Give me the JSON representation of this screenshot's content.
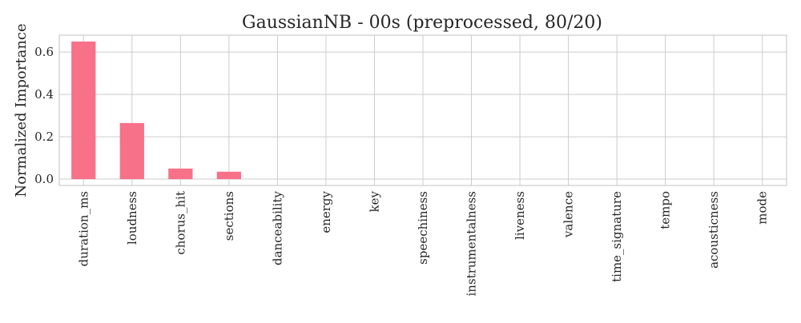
{
  "chart_data": {
    "type": "bar",
    "title": "GaussianNB - 00s (preprocessed, 80/20)",
    "xlabel": "",
    "ylabel": "Normalized Importance",
    "categories": [
      "duration_ms",
      "loudness",
      "chorus_hit",
      "sections",
      "danceability",
      "energy",
      "key",
      "speechiness",
      "instrumentalness",
      "liveness",
      "valence",
      "time_signature",
      "tempo",
      "acousticness",
      "mode"
    ],
    "values": [
      0.65,
      0.265,
      0.05,
      0.035,
      0,
      0,
      0,
      0,
      0,
      0,
      0,
      0,
      0,
      0,
      0
    ],
    "ylim": [
      -0.03,
      0.68
    ],
    "yticks": [
      0.0,
      0.2,
      0.4,
      0.6
    ],
    "ytick_labels": [
      "0.0",
      "0.2",
      "0.4",
      "0.6"
    ],
    "grid": true,
    "bar_color": "#f77189",
    "grid_color": "#cccccc",
    "axis_color": "#cccccc"
  }
}
